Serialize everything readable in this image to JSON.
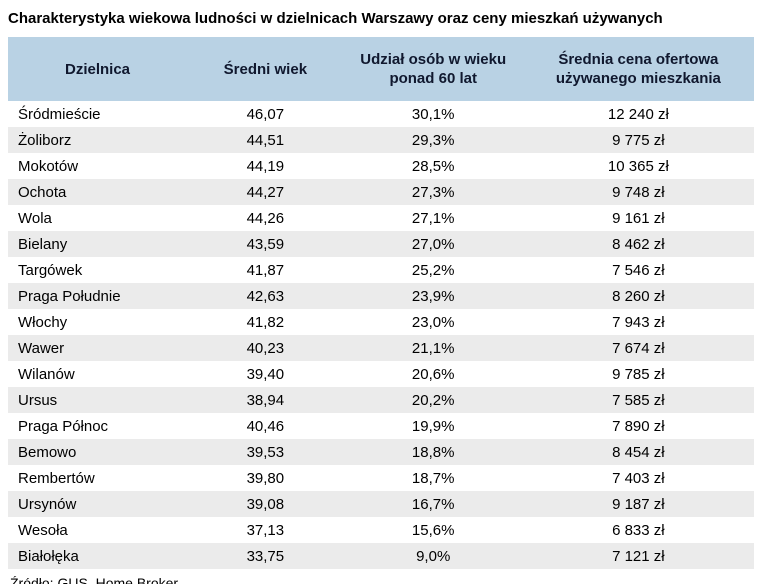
{
  "title": "Charakterystyka wiekowa ludności w dzielnicach Warszawy oraz ceny mieszkań używanych",
  "source": "Źródło: GUS, Home Broker",
  "colors": {
    "header_bg": "#b9d2e4",
    "row_alt_bg": "#ebebeb",
    "row_bg": "#ffffff"
  },
  "chart_data": {
    "type": "table",
    "title": "Charakterystyka wiekowa ludności w dzielnicach Warszawy oraz ceny mieszkań używanych",
    "columns": [
      "Dzielnica",
      "Średni wiek",
      "Udział osób w wieku ponad 60 lat",
      "Średnia cena ofertowa używanego mieszkania"
    ],
    "rows": [
      [
        "Śródmieście",
        "46,07",
        "30,1%",
        "12 240 zł"
      ],
      [
        "Żoliborz",
        "44,51",
        "29,3%",
        "9 775 zł"
      ],
      [
        "Mokotów",
        "44,19",
        "28,5%",
        "10 365 zł"
      ],
      [
        "Ochota",
        "44,27",
        "27,3%",
        "9 748 zł"
      ],
      [
        "Wola",
        "44,26",
        "27,1%",
        "9 161 zł"
      ],
      [
        "Bielany",
        "43,59",
        "27,0%",
        "8 462 zł"
      ],
      [
        "Targówek",
        "41,87",
        "25,2%",
        "7 546 zł"
      ],
      [
        "Praga Południe",
        "42,63",
        "23,9%",
        "8 260 zł"
      ],
      [
        "Włochy",
        "41,82",
        "23,0%",
        "7 943 zł"
      ],
      [
        "Wawer",
        "40,23",
        "21,1%",
        "7 674 zł"
      ],
      [
        "Wilanów",
        "39,40",
        "20,6%",
        "9 785 zł"
      ],
      [
        "Ursus",
        "38,94",
        "20,2%",
        "7 585 zł"
      ],
      [
        "Praga Północ",
        "40,46",
        "19,9%",
        "7 890 zł"
      ],
      [
        "Bemowo",
        "39,53",
        "18,8%",
        "8 454 zł"
      ],
      [
        "Rembertów",
        "39,80",
        "18,7%",
        "7 403 zł"
      ],
      [
        "Ursynów",
        "39,08",
        "16,7%",
        "9 187 zł"
      ],
      [
        "Wesoła",
        "37,13",
        "15,6%",
        "6 833 zł"
      ],
      [
        "Białołęka",
        "33,75",
        "9,0%",
        "7 121 zł"
      ]
    ]
  }
}
